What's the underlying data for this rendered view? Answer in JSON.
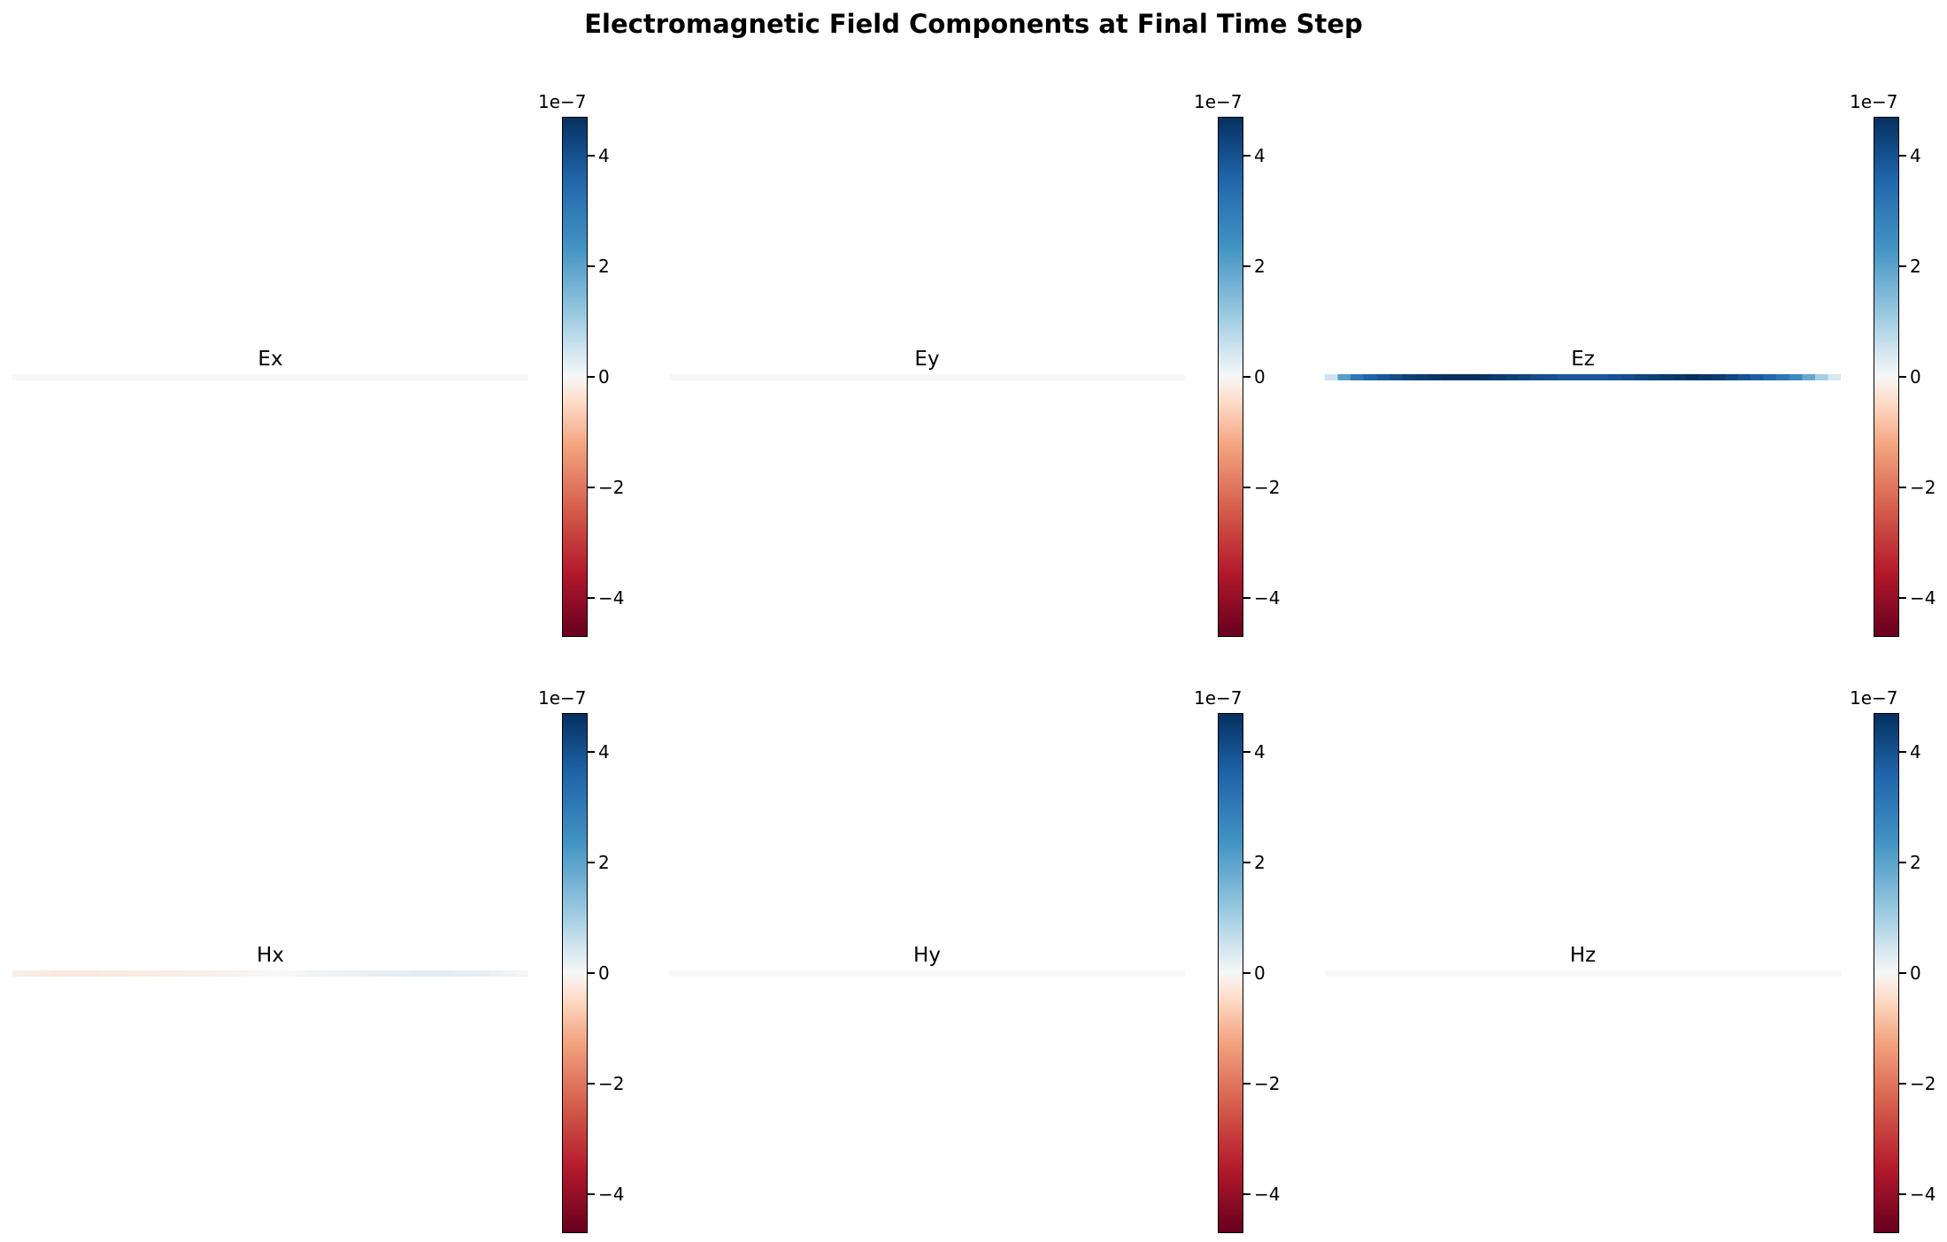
{
  "title": "Electromagnetic Field Components at Final Time Step",
  "chart_data": [
    {
      "type": "heatmap",
      "name": "Ex",
      "title": "Ex",
      "values": [
        0,
        0,
        0,
        0,
        0,
        0,
        0,
        0,
        0,
        0,
        0,
        0,
        0,
        0,
        0,
        0,
        0,
        0,
        0,
        0,
        0,
        0,
        0,
        0,
        0,
        0,
        0,
        0,
        0,
        0,
        0,
        0,
        0,
        0,
        0,
        0,
        0,
        0,
        0,
        0
      ],
      "vmin": -4.7e-07,
      "vmax": 4.7e-07,
      "colorbar_ticks": [
        "−4",
        "−2",
        "0",
        "2",
        "4"
      ],
      "colorbar_offset": "1e−7",
      "colormap": "RdBu"
    },
    {
      "type": "heatmap",
      "name": "Ey",
      "title": "Ey",
      "values": [
        0,
        0,
        0,
        0,
        0,
        0,
        0,
        0,
        0,
        0,
        0,
        0,
        0,
        0,
        0,
        0,
        0,
        0,
        0,
        0,
        0,
        0,
        0,
        0,
        0,
        0,
        0,
        0,
        0,
        0,
        0,
        0,
        0,
        0,
        0,
        0,
        0,
        0,
        0,
        0
      ],
      "vmin": -4.7e-07,
      "vmax": 4.7e-07,
      "colorbar_ticks": [
        "−4",
        "−2",
        "0",
        "2",
        "4"
      ],
      "colorbar_offset": "1e−7",
      "colormap": "RdBu"
    },
    {
      "type": "heatmap",
      "name": "Ez",
      "title": "Ez",
      "values": [
        1e-07,
        2.6e-07,
        3.4e-07,
        3.8e-07,
        4e-07,
        4.2e-07,
        4.4e-07,
        4.5e-07,
        4.6e-07,
        4.7e-07,
        4.7e-07,
        4.7e-07,
        4.6e-07,
        4.5e-07,
        4.4e-07,
        4.3e-07,
        4.2e-07,
        4.1e-07,
        4e-07,
        4e-07,
        4e-07,
        4e-07,
        4.1e-07,
        4.2e-07,
        4.3e-07,
        4.4e-07,
        4.5e-07,
        4.6e-07,
        4.7e-07,
        4.6e-07,
        4.5e-07,
        4.3e-07,
        4.1e-07,
        3.9e-07,
        3.7e-07,
        3.4e-07,
        3e-07,
        2.4e-07,
        1.6e-07,
        8e-08
      ],
      "vmin": -4.7e-07,
      "vmax": 4.7e-07,
      "colorbar_ticks": [
        "−4",
        "−2",
        "0",
        "2",
        "4"
      ],
      "colorbar_offset": "1e−7",
      "colormap": "RdBu"
    },
    {
      "type": "heatmap",
      "name": "Hx",
      "title": "Hx",
      "values": [
        -3e-08,
        -4e-08,
        -4.5e-08,
        -5e-08,
        -5e-08,
        -5e-08,
        -5e-08,
        -4.5e-08,
        -4.5e-08,
        -4e-08,
        -4e-08,
        -3.5e-08,
        -3.5e-08,
        -3e-08,
        -3e-08,
        -2.5e-08,
        -2e-08,
        -1.5e-08,
        -1e-08,
        -5e-09,
        0,
        5e-09,
        1e-08,
        1.5e-08,
        2e-08,
        2.5e-08,
        3e-08,
        3.5e-08,
        4e-08,
        4.5e-08,
        5e-08,
        5.5e-08,
        5.5e-08,
        5.5e-08,
        5e-08,
        4.5e-08,
        4e-08,
        3e-08,
        2e-08,
        1e-08
      ],
      "vmin": -4.7e-07,
      "vmax": 4.7e-07,
      "colorbar_ticks": [
        "−4",
        "−2",
        "0",
        "2",
        "4"
      ],
      "colorbar_offset": "1e−7",
      "colormap": "RdBu"
    },
    {
      "type": "heatmap",
      "name": "Hy",
      "title": "Hy",
      "values": [
        0,
        0,
        0,
        0,
        0,
        0,
        0,
        0,
        0,
        0,
        0,
        0,
        0,
        0,
        0,
        0,
        0,
        0,
        0,
        0,
        0,
        0,
        0,
        0,
        0,
        0,
        0,
        0,
        0,
        0,
        0,
        0,
        0,
        0,
        0,
        0,
        0,
        0,
        0,
        0
      ],
      "vmin": -4.7e-07,
      "vmax": 4.7e-07,
      "colorbar_ticks": [
        "−4",
        "−2",
        "0",
        "2",
        "4"
      ],
      "colorbar_offset": "1e−7",
      "colormap": "RdBu"
    },
    {
      "type": "heatmap",
      "name": "Hz",
      "title": "Hz",
      "values": [
        0,
        0,
        0,
        0,
        0,
        0,
        0,
        0,
        0,
        0,
        0,
        0,
        0,
        0,
        0,
        0,
        0,
        0,
        0,
        0,
        0,
        0,
        0,
        0,
        0,
        0,
        0,
        0,
        0,
        0,
        0,
        0,
        0,
        0,
        0,
        0,
        0,
        0,
        0,
        0
      ],
      "vmin": -4.7e-07,
      "vmax": 4.7e-07,
      "colorbar_ticks": [
        "−4",
        "−2",
        "0",
        "2",
        "4"
      ],
      "colorbar_offset": "1e−7",
      "colormap": "RdBu"
    }
  ]
}
